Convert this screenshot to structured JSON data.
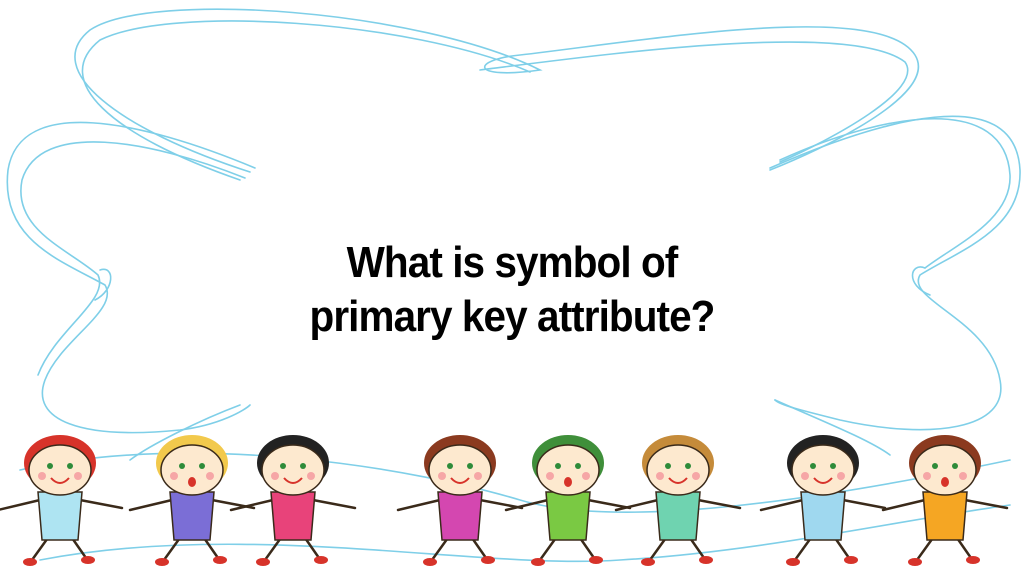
{
  "slide": {
    "question_line1": "What is symbol of",
    "question_line2": "primary key attribute?"
  },
  "illustration": {
    "frame_color": "#7fcfe8",
    "children_count": 8,
    "children": [
      {
        "shirt_color": "#aee4f2",
        "hair_color": "#d7332a"
      },
      {
        "shirt_color": "#7b6ed6",
        "hair_color": "#f2c94c"
      },
      {
        "shirt_color": "#e8437a",
        "hair_color": "#222222"
      },
      {
        "shirt_color": "#d447b0",
        "hair_color": "#8b3a1f"
      },
      {
        "shirt_color": "#7ac943",
        "hair_color": "#3f8f3a"
      },
      {
        "shirt_color": "#6fd3b0",
        "hair_color": "#c58b3a"
      },
      {
        "shirt_color": "#9fd8ef",
        "hair_color": "#222222"
      },
      {
        "shirt_color": "#f5a623",
        "hair_color": "#8b3a1f"
      }
    ]
  }
}
